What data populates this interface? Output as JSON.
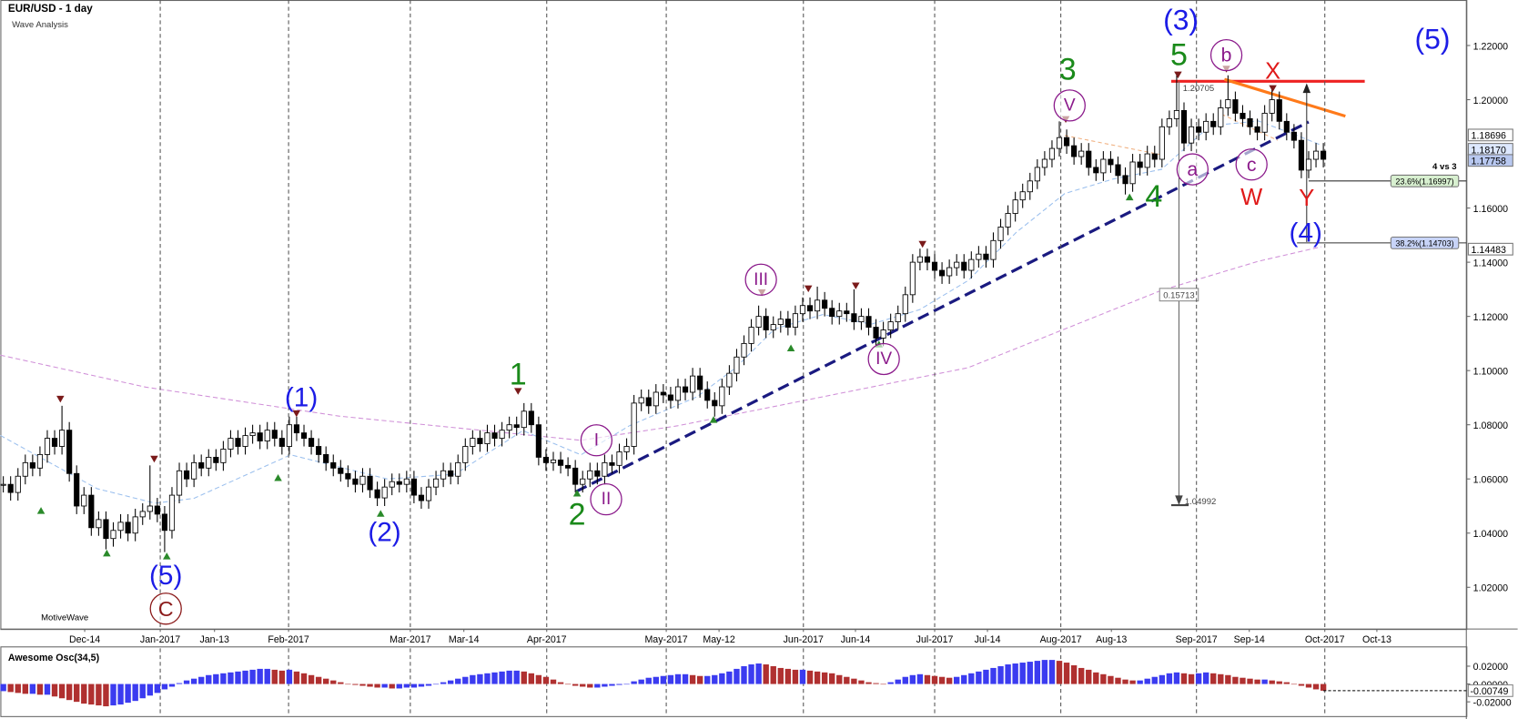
{
  "chart_data": [
    {
      "type": "candlestick",
      "title": "EUR/USD - 1 day",
      "subtitle": "Wave Analysis",
      "footer": "MotiveWave",
      "up_color": "#ffffff",
      "down_color": "#000000",
      "xlim": [
        -0.4,
        199.5
      ],
      "xticks": [
        {
          "value": 11.1,
          "label": "Dec-14"
        },
        {
          "value": 21.4,
          "label": "Jan-2017"
        },
        {
          "value": 28.8,
          "label": "Jan-13"
        },
        {
          "value": 38.9,
          "label": "Feb-2017"
        },
        {
          "value": 55.5,
          "label": "Mar-2017"
        },
        {
          "value": 62.8,
          "label": "Mar-14"
        },
        {
          "value": 74.1,
          "label": "Apr-2017"
        },
        {
          "value": 90.4,
          "label": "May-2017"
        },
        {
          "value": 97.6,
          "label": "May-12"
        },
        {
          "value": 109.1,
          "label": "Jun-2017"
        },
        {
          "value": 116.2,
          "label": "Jun-14"
        },
        {
          "value": 127,
          "label": "Jul-2017"
        },
        {
          "value": 134.2,
          "label": "Jul-14"
        },
        {
          "value": 144.2,
          "label": "Aug-2017"
        },
        {
          "value": 151.1,
          "label": "Aug-13"
        },
        {
          "value": 162.7,
          "label": "Sep-2017"
        },
        {
          "value": 169.9,
          "label": "Sep-14"
        },
        {
          "value": 180.2,
          "label": "Oct-2017"
        },
        {
          "value": 187.3,
          "label": "Oct-13"
        }
      ],
      "ylim": [
        1.0046,
        1.2368
      ],
      "yticks": [
        {
          "value": 1.02,
          "label": "1.02000"
        },
        {
          "value": 1.04,
          "label": "1.04000"
        },
        {
          "value": 1.06,
          "label": "1.06000"
        },
        {
          "value": 1.08,
          "label": "1.08000"
        },
        {
          "value": 1.1,
          "label": "1.10000"
        },
        {
          "value": 1.12,
          "label": "1.12000"
        },
        {
          "value": 1.14,
          "label": "1.14000"
        },
        {
          "value": 1.16,
          "label": "1.16000"
        },
        {
          "value": 1.2,
          "label": "1.20000"
        },
        {
          "value": 1.22,
          "label": "1.22000"
        }
      ],
      "close": [
        1.058,
        1.055,
        1.061,
        1.066,
        1.064,
        1.069,
        1.075,
        1.072,
        1.078,
        1.062,
        1.05,
        1.054,
        1.042,
        1.045,
        1.038,
        1.041,
        1.044,
        1.04,
        1.046,
        1.048,
        1.05,
        1.047,
        1.041,
        1.054,
        1.063,
        1.06,
        1.066,
        1.064,
        1.068,
        1.066,
        1.071,
        1.075,
        1.072,
        1.076,
        1.077,
        1.074,
        1.078,
        1.075,
        1.072,
        1.08,
        1.077,
        1.075,
        1.072,
        1.069,
        1.066,
        1.064,
        1.062,
        1.06,
        1.058,
        1.061,
        1.056,
        1.053,
        1.057,
        1.059,
        1.058,
        1.06,
        1.054,
        1.052,
        1.057,
        1.06,
        1.063,
        1.061,
        1.066,
        1.072,
        1.075,
        1.073,
        1.077,
        1.075,
        1.078,
        1.08,
        1.079,
        1.085,
        1.08,
        1.068,
        1.066,
        1.067,
        1.065,
        1.064,
        1.058,
        1.06,
        1.063,
        1.061,
        1.066,
        1.065,
        1.07,
        1.072,
        1.088,
        1.09,
        1.087,
        1.092,
        1.091,
        1.089,
        1.094,
        1.092,
        1.098,
        1.093,
        1.089,
        1.087,
        1.094,
        1.099,
        1.105,
        1.11,
        1.116,
        1.12,
        1.115,
        1.117,
        1.119,
        1.116,
        1.121,
        1.124,
        1.122,
        1.126,
        1.123,
        1.12,
        1.122,
        1.121,
        1.118,
        1.12,
        1.116,
        1.112,
        1.115,
        1.118,
        1.121,
        1.128,
        1.14,
        1.142,
        1.14,
        1.137,
        1.135,
        1.138,
        1.14,
        1.137,
        1.141,
        1.143,
        1.141,
        1.148,
        1.153,
        1.158,
        1.163,
        1.166,
        1.17,
        1.175,
        1.178,
        1.182,
        1.186,
        1.183,
        1.179,
        1.181,
        1.175,
        1.173,
        1.178,
        1.176,
        1.172,
        1.169,
        1.177,
        1.175,
        1.18,
        1.178,
        1.19,
        1.193,
        1.196,
        1.184,
        1.19,
        1.188,
        1.192,
        1.19,
        1.197,
        1.2,
        1.195,
        1.193,
        1.19,
        1.188,
        1.195,
        1.2,
        1.192,
        1.188,
        1.185,
        1.174,
        1.178,
        1.181,
        1.178
      ],
      "high": [
        1.061,
        1.061,
        1.064,
        1.069,
        1.069,
        1.072,
        1.078,
        1.078,
        1.087,
        1.081,
        1.065,
        1.057,
        1.057,
        1.048,
        1.048,
        1.044,
        1.047,
        1.047,
        1.049,
        1.051,
        1.065,
        1.053,
        1.05,
        1.057,
        1.066,
        1.066,
        1.069,
        1.069,
        1.071,
        1.071,
        1.074,
        1.078,
        1.078,
        1.079,
        1.08,
        1.08,
        1.081,
        1.081,
        1.078,
        1.083,
        1.083,
        1.08,
        1.078,
        1.075,
        1.072,
        1.069,
        1.067,
        1.065,
        1.063,
        1.064,
        1.064,
        1.059,
        1.06,
        1.062,
        1.062,
        1.063,
        1.063,
        1.057,
        1.06,
        1.063,
        1.066,
        1.066,
        1.069,
        1.075,
        1.078,
        1.078,
        1.08,
        1.08,
        1.081,
        1.083,
        1.083,
        1.088,
        1.088,
        1.083,
        1.071,
        1.07,
        1.07,
        1.068,
        1.067,
        1.063,
        1.066,
        1.066,
        1.069,
        1.069,
        1.073,
        1.075,
        1.091,
        1.093,
        1.093,
        1.095,
        1.095,
        1.094,
        1.097,
        1.097,
        1.101,
        1.101,
        1.096,
        1.092,
        1.097,
        1.102,
        1.108,
        1.113,
        1.119,
        1.124,
        1.123,
        1.12,
        1.122,
        1.122,
        1.124,
        1.127,
        1.127,
        1.131,
        1.129,
        1.126,
        1.125,
        1.125,
        1.13,
        1.123,
        1.123,
        1.119,
        1.118,
        1.121,
        1.124,
        1.131,
        1.143,
        1.145,
        1.145,
        1.143,
        1.14,
        1.141,
        1.143,
        1.143,
        1.144,
        1.146,
        1.146,
        1.151,
        1.156,
        1.161,
        1.166,
        1.169,
        1.173,
        1.178,
        1.181,
        1.185,
        1.192,
        1.189,
        1.186,
        1.184,
        1.184,
        1.178,
        1.181,
        1.181,
        1.179,
        1.175,
        1.18,
        1.18,
        1.183,
        1.183,
        1.193,
        1.196,
        1.209,
        1.199,
        1.193,
        1.193,
        1.195,
        1.195,
        1.2,
        1.209,
        1.203,
        1.198,
        1.196,
        1.193,
        1.198,
        1.205,
        1.203,
        1.195,
        1.191,
        1.188,
        1.181,
        1.184,
        1.184
      ],
      "low": [
        1.055,
        1.052,
        1.052,
        1.058,
        1.061,
        1.061,
        1.066,
        1.069,
        1.069,
        1.059,
        1.047,
        1.047,
        1.039,
        1.039,
        1.034,
        1.035,
        1.038,
        1.037,
        1.037,
        1.043,
        1.045,
        1.044,
        1.033,
        1.038,
        1.051,
        1.057,
        1.057,
        1.061,
        1.061,
        1.063,
        1.063,
        1.068,
        1.069,
        1.069,
        1.073,
        1.071,
        1.071,
        1.072,
        1.069,
        1.069,
        1.074,
        1.072,
        1.069,
        1.066,
        1.063,
        1.061,
        1.059,
        1.057,
        1.055,
        1.055,
        1.053,
        1.05,
        1.05,
        1.054,
        1.055,
        1.055,
        1.051,
        1.049,
        1.049,
        1.054,
        1.057,
        1.058,
        1.058,
        1.063,
        1.069,
        1.07,
        1.07,
        1.072,
        1.072,
        1.075,
        1.076,
        1.076,
        1.077,
        1.065,
        1.063,
        1.063,
        1.062,
        1.061,
        1.055,
        1.055,
        1.057,
        1.058,
        1.058,
        1.062,
        1.062,
        1.067,
        1.069,
        1.085,
        1.084,
        1.084,
        1.088,
        1.086,
        1.086,
        1.089,
        1.089,
        1.09,
        1.086,
        1.083,
        1.084,
        1.091,
        1.096,
        1.102,
        1.107,
        1.113,
        1.112,
        1.112,
        1.114,
        1.113,
        1.113,
        1.118,
        1.119,
        1.119,
        1.12,
        1.117,
        1.117,
        1.118,
        1.115,
        1.115,
        1.113,
        1.109,
        1.109,
        1.112,
        1.115,
        1.118,
        1.125,
        1.137,
        1.137,
        1.134,
        1.132,
        1.132,
        1.135,
        1.134,
        1.134,
        1.138,
        1.138,
        1.138,
        1.145,
        1.15,
        1.155,
        1.16,
        1.163,
        1.167,
        1.172,
        1.175,
        1.179,
        1.18,
        1.176,
        1.176,
        1.172,
        1.17,
        1.17,
        1.173,
        1.169,
        1.165,
        1.166,
        1.172,
        1.172,
        1.175,
        1.175,
        1.187,
        1.19,
        1.181,
        1.181,
        1.185,
        1.185,
        1.187,
        1.187,
        1.194,
        1.192,
        1.19,
        1.187,
        1.185,
        1.185,
        1.192,
        1.189,
        1.185,
        1.182,
        1.171,
        1.171,
        1.175,
        1.175
      ],
      "price_markers": [
        {
          "value": 1.18696,
          "label": "1.18696",
          "color": "#ffffff"
        },
        {
          "value": 1.1817,
          "label": "1.18170",
          "color": "#dde8ff"
        },
        {
          "value": 1.17758,
          "label": "1.17758",
          "color": "#b8c8f0"
        },
        {
          "value": 1.14483,
          "label": "1.14483",
          "color": "#ffffff"
        }
      ],
      "fib_labels": [
        {
          "label": "23.6%(1.16997)",
          "color": "#d8f0d0"
        },
        {
          "label": "38.2%(1.14703)",
          "color": "#c8d4f8"
        }
      ],
      "count_label": "4 vs 3",
      "measure_labels": [
        "1.20705",
        "0.15713",
        "1.04992"
      ],
      "annotations": [
        {
          "text": "(3)",
          "color": "#1c1ce6"
        },
        {
          "text": "(5)",
          "color": "#1c1ce6"
        },
        {
          "text": "(1)",
          "color": "#1c1ce6"
        },
        {
          "text": "(2)",
          "color": "#1c1ce6"
        },
        {
          "text": "(5)",
          "color": "#1c1ce6"
        },
        {
          "text": "(4)",
          "color": "#1c1ce6"
        },
        {
          "text": "C",
          "color": "#8b1a1a"
        },
        {
          "text": "1",
          "color": "#1a8a1a"
        },
        {
          "text": "2",
          "color": "#1a8a1a"
        },
        {
          "text": "3",
          "color": "#1a8a1a"
        },
        {
          "text": "4",
          "color": "#1a8a1a"
        },
        {
          "text": "5",
          "color": "#1a8a1a"
        },
        {
          "text": "I",
          "color": "#8b1a8b"
        },
        {
          "text": "II",
          "color": "#8b1a8b"
        },
        {
          "text": "III",
          "color": "#8b1a8b"
        },
        {
          "text": "IV",
          "color": "#8b1a8b"
        },
        {
          "text": "V",
          "color": "#8b1a8b"
        },
        {
          "text": "a",
          "color": "#8b1a8b"
        },
        {
          "text": "b",
          "color": "#8b1a8b"
        },
        {
          "text": "c",
          "color": "#8b1a8b"
        },
        {
          "text": "W",
          "color": "#e01a1a"
        },
        {
          "text": "X",
          "color": "#e01a1a"
        },
        {
          "text": "Y",
          "color": "#e01a1a"
        }
      ]
    },
    {
      "type": "bar",
      "title": "Awesome Osc(34,5)",
      "rising_color": "#3b3bf0",
      "falling_color": "#b03030",
      "ylim": [
        -0.036,
        0.04
      ],
      "yticks": [
        {
          "value": -0.02,
          "label": "-0.02000"
        },
        {
          "value": 0,
          "label": "0.00000"
        },
        {
          "value": 0.02,
          "label": "0.02000"
        }
      ],
      "current_label": "-0.00749",
      "values": [
        -0.008,
        -0.009,
        -0.01,
        -0.011,
        -0.011,
        -0.012,
        -0.012,
        -0.014,
        -0.016,
        -0.018,
        -0.02,
        -0.022,
        -0.023,
        -0.024,
        -0.025,
        -0.024,
        -0.023,
        -0.021,
        -0.019,
        -0.016,
        -0.013,
        -0.01,
        -0.006,
        -0.003,
        0.001,
        0.004,
        0.006,
        0.008,
        0.01,
        0.011,
        0.012,
        0.013,
        0.014,
        0.015,
        0.016,
        0.017,
        0.017,
        0.016,
        0.015,
        0.016,
        0.014,
        0.012,
        0.01,
        0.008,
        0.006,
        0.004,
        0.002,
        0.0,
        -0.001,
        -0.002,
        -0.003,
        -0.004,
        -0.004,
        -0.005,
        -0.005,
        -0.004,
        -0.004,
        -0.003,
        -0.002,
        0.0,
        0.002,
        0.004,
        0.006,
        0.008,
        0.01,
        0.011,
        0.012,
        0.013,
        0.014,
        0.015,
        0.015,
        0.014,
        0.012,
        0.01,
        0.008,
        0.005,
        0.002,
        0.0,
        -0.002,
        -0.003,
        -0.004,
        -0.004,
        -0.003,
        -0.002,
        -0.001,
        0.0,
        0.003,
        0.005,
        0.007,
        0.008,
        0.009,
        0.01,
        0.011,
        0.011,
        0.01,
        0.009,
        0.009,
        0.01,
        0.012,
        0.014,
        0.017,
        0.02,
        0.022,
        0.023,
        0.022,
        0.02,
        0.018,
        0.017,
        0.016,
        0.016,
        0.015,
        0.014,
        0.013,
        0.012,
        0.01,
        0.008,
        0.006,
        0.004,
        0.002,
        0.001,
        0.0,
        0.002,
        0.005,
        0.008,
        0.01,
        0.011,
        0.01,
        0.009,
        0.008,
        0.007,
        0.008,
        0.01,
        0.012,
        0.014,
        0.016,
        0.018,
        0.02,
        0.022,
        0.023,
        0.024,
        0.025,
        0.026,
        0.027,
        0.027,
        0.026,
        0.024,
        0.021,
        0.018,
        0.016,
        0.013,
        0.011,
        0.009,
        0.007,
        0.005,
        0.004,
        0.004,
        0.006,
        0.008,
        0.01,
        0.012,
        0.013,
        0.012,
        0.011,
        0.012,
        0.013,
        0.012,
        0.011,
        0.01,
        0.008,
        0.007,
        0.006,
        0.005,
        0.005,
        0.004,
        0.003,
        0.002,
        0.0,
        -0.002,
        -0.004,
        -0.006,
        -0.00749
      ]
    }
  ]
}
